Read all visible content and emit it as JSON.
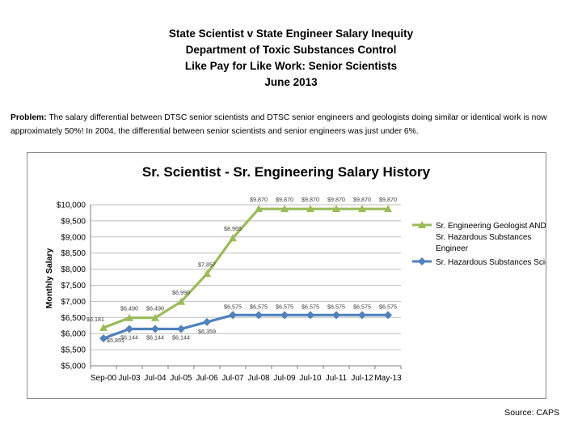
{
  "header": {
    "line1": "State Scientist v State Engineer Salary Inequity",
    "line2": "Department of Toxic Substances Control",
    "line3": "Like Pay for Like Work: Senior Scientists",
    "line4": "June 2013"
  },
  "problem": {
    "label": "Problem:",
    "text": "The salary differential between DTSC senior scientists and DTSC senior engineers and geologists doing similar or identical work is now approximately 50%!  In 2004, the differential between senior scientists and senior engineers was just under 6%."
  },
  "source": "Source:  CAPS",
  "colors": {
    "engineering": "#9bbb59",
    "scientist": "#4f81bd",
    "grid": "#bfbfbf",
    "axis": "#7f7f7f"
  },
  "chart_data": {
    "type": "line",
    "title": "Sr. Scientist - Sr. Engineering Salary History",
    "xlabel": "",
    "ylabel": "Monthly Salary",
    "ylim": [
      5000,
      10000
    ],
    "yticks": [
      "$5,000",
      "$5,500",
      "$6,000",
      "$6,500",
      "$7,000",
      "$7,500",
      "$8,000",
      "$8,500",
      "$9,000",
      "$9,500",
      "$10,000"
    ],
    "categories": [
      "Sep-00",
      "Jul-03",
      "Jul-04",
      "Jul-05",
      "Jul-06",
      "Jul-07",
      "Jul-08",
      "Jul-09",
      "Jul-10",
      "Jul-11",
      "Jul-12",
      "May-13"
    ],
    "series": [
      {
        "name": "Sr. Engineering Geologist AND Sr. Hazardous Substances Engineer",
        "legend_lines": [
          "Sr. Engineering Geologist AND",
          "Sr. Hazardous Substances",
          "Engineer"
        ],
        "values": [
          6181,
          6490,
          6490,
          6990,
          7857,
          8965,
          9870,
          9870,
          9870,
          9870,
          9870,
          9870
        ],
        "labels": [
          "$6,181",
          "$6,490",
          "$6,490",
          "$6,990",
          "$7,857",
          "$8,965",
          "$9,870",
          "$9,870",
          "$9,870",
          "$9,870",
          "$9,870",
          "$9,870"
        ],
        "marker": "triangle"
      },
      {
        "name": "Sr. Hazardous Substances Scientist",
        "legend_lines": [
          "Sr. Hazardous Substances Scientist"
        ],
        "values": [
          5851,
          6144,
          6144,
          6144,
          6359,
          6575,
          6575,
          6575,
          6575,
          6575,
          6575,
          6575
        ],
        "labels": [
          "$5,851",
          "$6,144",
          "$6,144",
          "$6,144",
          "$6,359",
          "$6,575",
          "$6,575",
          "$6,575",
          "$6,575",
          "$6,575",
          "$6,575",
          "$6,575"
        ],
        "marker": "diamond"
      }
    ],
    "grid": true,
    "legend": "right"
  }
}
